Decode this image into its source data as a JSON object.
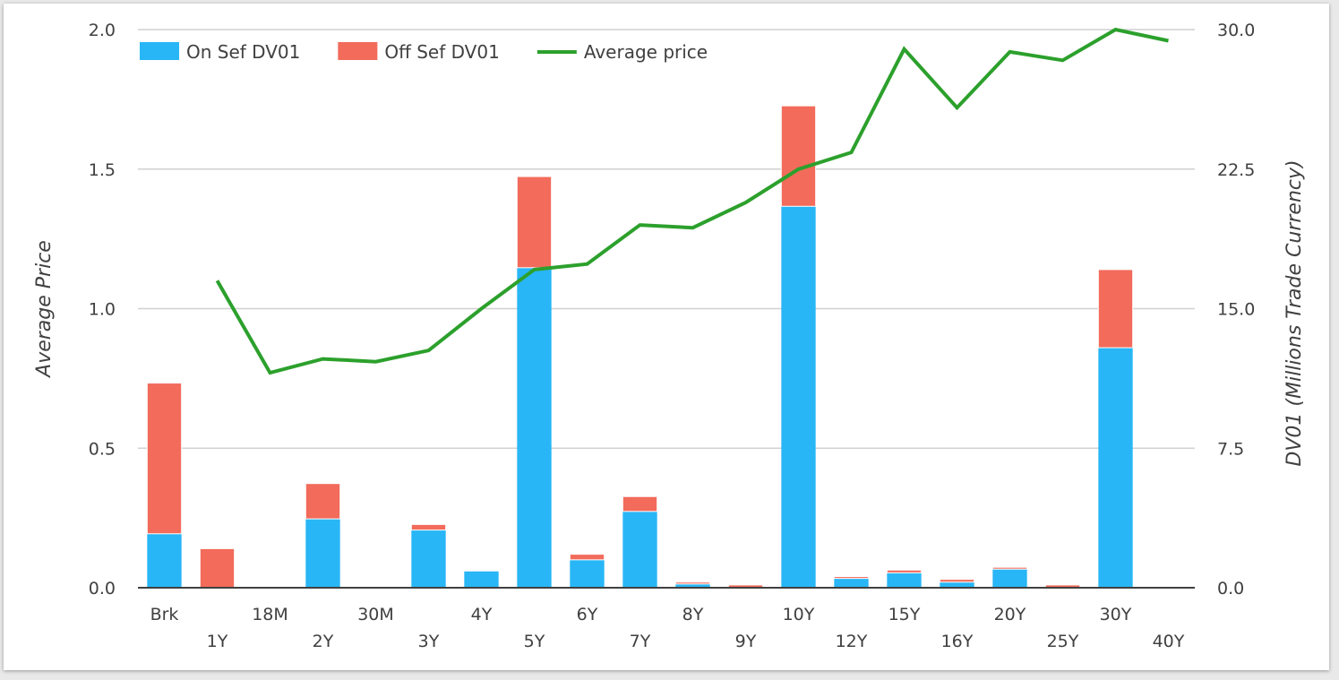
{
  "chart_data": {
    "type": "bar",
    "stacked": true,
    "categories": [
      "Brk",
      "1Y",
      "18M",
      "2Y",
      "30M",
      "3Y",
      "4Y",
      "5Y",
      "6Y",
      "7Y",
      "8Y",
      "9Y",
      "10Y",
      "12Y",
      "15Y",
      "16Y",
      "20Y",
      "25Y",
      "30Y",
      "40Y"
    ],
    "bar_axis": "right",
    "line_axis": "left",
    "series": [
      {
        "name": "On Sef DV01",
        "kind": "bar",
        "color": "#29b6f6",
        "values": [
          2.9,
          0,
          0,
          3.7,
          0,
          3.1,
          0.9,
          17.2,
          1.5,
          4.1,
          0.2,
          0,
          20.5,
          0.5,
          0.8,
          0.3,
          1.0,
          0,
          12.9,
          0
        ]
      },
      {
        "name": "Off Sef DV01",
        "kind": "bar",
        "color": "#f26b5b",
        "values": [
          8.1,
          2.1,
          0,
          1.9,
          0,
          0.3,
          0.05,
          4.9,
          0.3,
          0.8,
          0.1,
          0.15,
          5.4,
          0.1,
          0.15,
          0.15,
          0.1,
          0.15,
          4.2,
          0
        ]
      },
      {
        "name": "Average price",
        "kind": "line",
        "color": "#2ca02c",
        "values": [
          null,
          1.1,
          0.77,
          0.82,
          0.81,
          0.85,
          1.0,
          1.14,
          1.16,
          1.3,
          1.29,
          1.38,
          1.5,
          1.56,
          1.93,
          1.72,
          1.92,
          1.89,
          2.0,
          1.96
        ]
      }
    ],
    "ylabel": "Average Price",
    "y2label": "DV01 (Millions Trade Currency)",
    "ylim": [
      0,
      2.0
    ],
    "y2lim": [
      0,
      30.0
    ],
    "yticks": [
      "0.0",
      "0.5",
      "1.0",
      "1.5",
      "2.0"
    ],
    "y2ticks": [
      "0.0",
      "7.5",
      "15.0",
      "22.5",
      "30.0"
    ],
    "grid": true,
    "legend_position": "top-left"
  }
}
